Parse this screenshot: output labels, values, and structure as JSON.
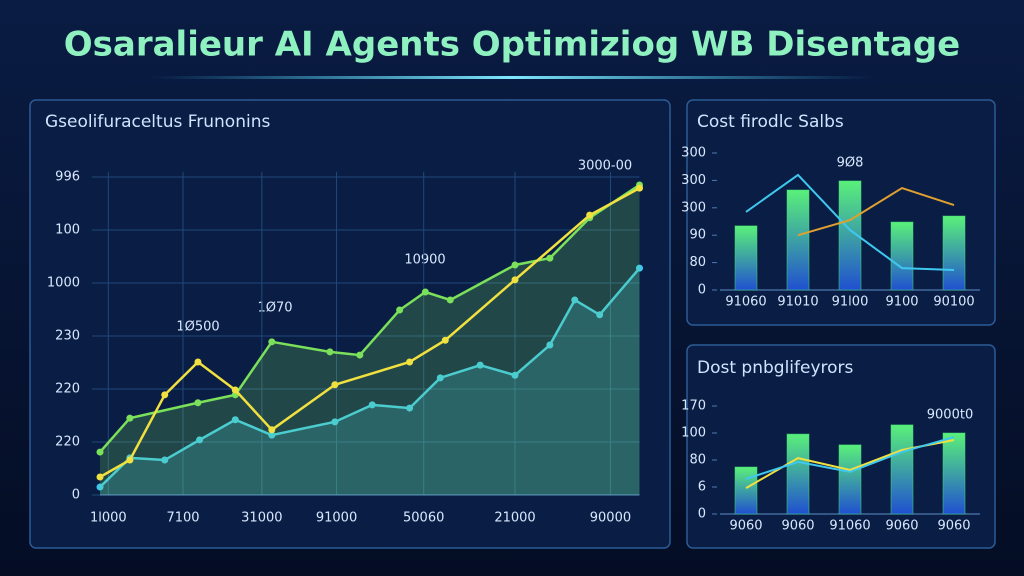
{
  "title": "Osaralieur AI Agents Optimiziog WB Disentage",
  "chart_data": [
    {
      "type": "line",
      "title": "Gseolifuraceltus Frunonins",
      "grid": true,
      "xlim": [
        0,
        6.5
      ],
      "ylim": [
        0,
        6.1
      ],
      "xticks": [
        {
          "value": 0.1,
          "label": "1l000"
        },
        {
          "value": 1,
          "label": "7100"
        },
        {
          "value": 1.95,
          "label": "31000"
        },
        {
          "value": 2.85,
          "label": "91000"
        },
        {
          "value": 3.9,
          "label": "50060"
        },
        {
          "value": 5,
          "label": "21000"
        },
        {
          "value": 6.15,
          "label": "90000"
        }
      ],
      "yticks": [
        0,
        {
          "value": 1,
          "label": "220"
        },
        {
          "value": 2,
          "label": "220"
        },
        {
          "value": 3,
          "label": "230"
        },
        {
          "value": 4,
          "label": "1000"
        },
        {
          "value": 5,
          "label": "100"
        },
        {
          "value": 6,
          "label": "996"
        }
      ],
      "annotations": [
        "1Ø500",
        "1Ø70",
        "10900",
        "3000-00"
      ],
      "series": [
        {
          "color": "#3ec8f0",
          "area": true,
          "x": [
            0,
            0.36,
            0.78,
            1.2,
            1.63,
            2.07,
            2.83,
            3.28,
            3.73,
            4.1,
            4.58,
            5,
            5.42,
            5.72,
            6.02,
            6.5
          ],
          "values": [
            0.15,
            0.7,
            0.66,
            1.04,
            1.42,
            1.13,
            1.38,
            1.7,
            1.64,
            2.21,
            2.45,
            2.26,
            2.83,
            3.68,
            3.4,
            4.28
          ]
        },
        {
          "color": "#7be05a",
          "area": true,
          "x": [
            0,
            0.36,
            1.18,
            1.63,
            2.07,
            2.77,
            3.13,
            3.61,
            3.92,
            4.22,
            5,
            5.42,
            5.9,
            6.5
          ],
          "values": [
            0.81,
            1.45,
            1.74,
            1.89,
            2.89,
            2.7,
            2.64,
            3.49,
            3.83,
            3.68,
            4.34,
            4.47,
            5.23,
            5.85
          ]
        },
        {
          "color": "#f0e040",
          "area": false,
          "x": [
            0,
            0.36,
            0.78,
            1.18,
            1.63,
            2.07,
            2.83,
            3.73,
            4.16,
            5,
            5.9,
            6.5
          ],
          "values": [
            0.34,
            0.66,
            1.89,
            2.51,
            1.98,
            1.23,
            2.08,
            2.51,
            2.92,
            4.06,
            5.28,
            5.79
          ]
        }
      ]
    },
    {
      "type": "bar",
      "title": "Cost firodlc Salbs",
      "color": "#3fe07a",
      "ylim": [
        0,
        5
      ],
      "yticks": [
        0,
        {
          "value": 1,
          "label": "80"
        },
        {
          "value": 2,
          "label": "90"
        },
        {
          "value": 3,
          "label": "300"
        },
        {
          "value": 4,
          "label": "300"
        },
        {
          "value": 5,
          "label": "300"
        }
      ],
      "categories": [
        "91060",
        "91010",
        "91l00",
        "9100",
        "90100"
      ],
      "values": [
        2.34,
        3.65,
        3.98,
        2.48,
        2.7
      ],
      "annotations": [
        "9Ø8"
      ],
      "series": [
        {
          "color": "#3ec8f0",
          "values": [
            2.85,
            4.2,
            2.19,
            0.8,
            0.73
          ]
        },
        {
          "color": "#e0a030",
          "values": [
            null,
            2.0,
            2.55,
            3.72,
            3.1
          ]
        }
      ]
    },
    {
      "type": "bar",
      "title": "Dost pnbglifeyrors",
      "color": "#3fe07a",
      "ylim": [
        0,
        4.2
      ],
      "yticks": [
        0,
        {
          "value": 1,
          "label": "6"
        },
        {
          "value": 2,
          "label": "80"
        },
        {
          "value": 3,
          "label": "100"
        },
        {
          "value": 4,
          "label": "170"
        }
      ],
      "categories": [
        "9060",
        "9060",
        "91060",
        "9060",
        "9060"
      ],
      "values": [
        1.74,
        2.96,
        2.56,
        3.3,
        3.0
      ],
      "annotations": [
        "9000t0"
      ],
      "series": [
        {
          "color": "#f0e040",
          "values": [
            0.96,
            2.07,
            1.63,
            2.37,
            2.74
          ]
        },
        {
          "color": "#3ec8f0",
          "values": [
            1.3,
            1.93,
            1.56,
            2.3,
            2.85
          ]
        }
      ]
    }
  ]
}
